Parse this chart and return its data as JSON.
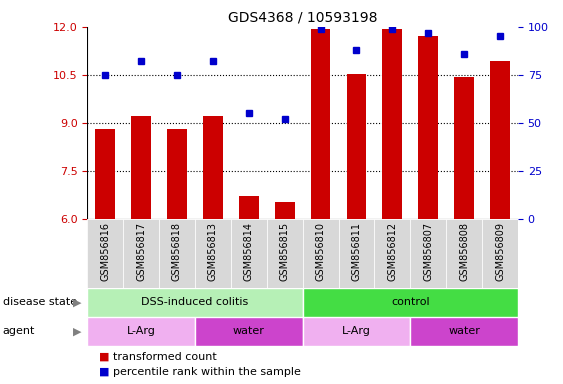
{
  "title": "GDS4368 / 10593198",
  "samples": [
    "GSM856816",
    "GSM856817",
    "GSM856818",
    "GSM856813",
    "GSM856814",
    "GSM856815",
    "GSM856810",
    "GSM856811",
    "GSM856812",
    "GSM856807",
    "GSM856808",
    "GSM856809"
  ],
  "red_values": [
    8.82,
    9.22,
    8.82,
    9.22,
    6.72,
    6.52,
    11.92,
    10.52,
    11.92,
    11.72,
    10.42,
    10.92
  ],
  "blue_values": [
    75,
    82,
    75,
    82,
    55,
    52,
    99,
    88,
    99,
    97,
    86,
    95
  ],
  "ylim_left": [
    6,
    12
  ],
  "ylim_right": [
    0,
    100
  ],
  "yticks_left": [
    6,
    7.5,
    9,
    10.5,
    12
  ],
  "yticks_right": [
    0,
    25,
    50,
    75,
    100
  ],
  "bar_color": "#cc0000",
  "dot_color": "#0000cc",
  "disease_state_groups": [
    {
      "label": "DSS-induced colitis",
      "start": 0,
      "end": 6,
      "color": "#b6f0b6"
    },
    {
      "label": "control",
      "start": 6,
      "end": 12,
      "color": "#44dd44"
    }
  ],
  "agent_groups": [
    {
      "label": "L-Arg",
      "start": 0,
      "end": 3,
      "color": "#f0b0f0"
    },
    {
      "label": "water",
      "start": 3,
      "end": 6,
      "color": "#cc44cc"
    },
    {
      "label": "L-Arg",
      "start": 6,
      "end": 9,
      "color": "#f0b0f0"
    },
    {
      "label": "water",
      "start": 9,
      "end": 12,
      "color": "#cc44cc"
    }
  ],
  "bar_width": 0.55,
  "tick_label_color_left": "#cc0000",
  "tick_label_color_right": "#0000cc",
  "label_left_disease": "disease state",
  "label_left_agent": "agent",
  "legend_items": [
    {
      "label": "transformed count",
      "color": "#cc0000"
    },
    {
      "label": "percentile rank within the sample",
      "color": "#0000cc"
    }
  ]
}
